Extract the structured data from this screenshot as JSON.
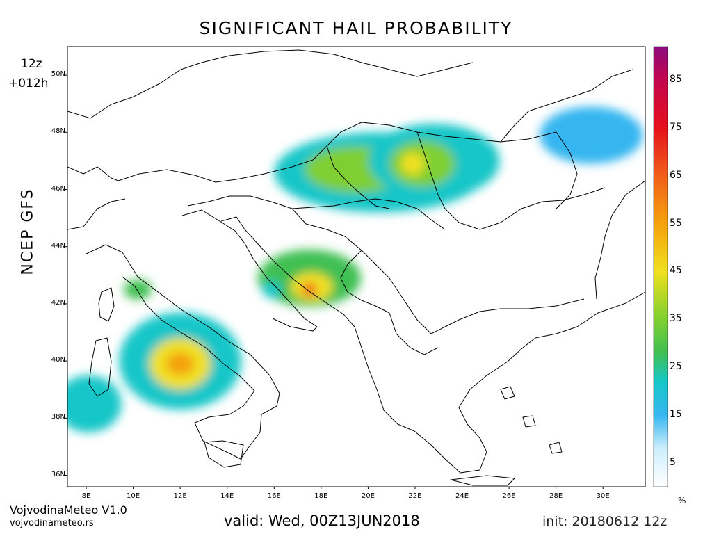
{
  "title": "SIGNIFICANT HAIL PROBABILITY",
  "run": {
    "cycle": "12z",
    "forecast_hour": "+012h"
  },
  "model": "NCEP GFS",
  "footer": {
    "brand": "VojvodinaMeteo V1.0",
    "url": "vojvodinameteo.rs",
    "valid": "valid: Wed, 00Z13JUN2018",
    "init": "init: 20180612 12z"
  },
  "map": {
    "lon_range": [
      7.2,
      31.8
    ],
    "lat_range": [
      35.6,
      51
    ],
    "lat_ticks": [
      {
        "v": 50,
        "label": "50N"
      },
      {
        "v": 48,
        "label": "48N"
      },
      {
        "v": 46,
        "label": "46N"
      },
      {
        "v": 44,
        "label": "44N"
      },
      {
        "v": 42,
        "label": "42N"
      },
      {
        "v": 40,
        "label": "40N"
      },
      {
        "v": 38,
        "label": "38N"
      },
      {
        "v": 36,
        "label": "36N"
      }
    ],
    "lon_ticks": [
      {
        "v": 8,
        "label": "8E"
      },
      {
        "v": 10,
        "label": "10E"
      },
      {
        "v": 12,
        "label": "12E"
      },
      {
        "v": 14,
        "label": "14E"
      },
      {
        "v": 16,
        "label": "16E"
      },
      {
        "v": 18,
        "label": "18E"
      },
      {
        "v": 20,
        "label": "20E"
      },
      {
        "v": 22,
        "label": "22E"
      },
      {
        "v": 24,
        "label": "24E"
      },
      {
        "v": 26,
        "label": "26E"
      },
      {
        "v": 28,
        "label": "28E"
      },
      {
        "v": 30,
        "label": "30E"
      }
    ],
    "probability_areas": [
      {
        "lon": 20.5,
        "lat": 46.6,
        "rx": 4.5,
        "ry": 1.4,
        "value": 20
      },
      {
        "lon": 19.5,
        "lat": 46.7,
        "rx": 2.2,
        "ry": 0.8,
        "value": 35
      },
      {
        "lon": 22.8,
        "lat": 47.0,
        "rx": 2.8,
        "ry": 1.3,
        "value": 25
      },
      {
        "lon": 22.3,
        "lat": 46.9,
        "rx": 1.4,
        "ry": 0.8,
        "value": 35
      },
      {
        "lon": 21.9,
        "lat": 46.9,
        "rx": 0.5,
        "ry": 0.4,
        "value": 50
      },
      {
        "lon": 29.5,
        "lat": 47.9,
        "rx": 2.2,
        "ry": 1.0,
        "value": 15
      },
      {
        "lon": 17.5,
        "lat": 42.9,
        "rx": 2.2,
        "ry": 1.0,
        "value": 28
      },
      {
        "lon": 17.6,
        "lat": 42.6,
        "rx": 0.9,
        "ry": 0.5,
        "value": 45
      },
      {
        "lon": 17.5,
        "lat": 42.5,
        "rx": 0.3,
        "ry": 0.25,
        "value": 70
      },
      {
        "lon": 12.0,
        "lat": 40.0,
        "rx": 2.6,
        "ry": 1.7,
        "value": 25
      },
      {
        "lon": 12.0,
        "lat": 39.9,
        "rx": 1.3,
        "ry": 0.9,
        "value": 45
      },
      {
        "lon": 12.0,
        "lat": 39.9,
        "rx": 0.6,
        "ry": 0.4,
        "value": 55
      },
      {
        "lon": 8.1,
        "lat": 38.5,
        "rx": 1.4,
        "ry": 1.0,
        "value": 25
      },
      {
        "lon": 10.2,
        "lat": 42.5,
        "rx": 0.6,
        "ry": 0.35,
        "value": 30
      },
      {
        "lon": 15.9,
        "lat": 42.5,
        "rx": 0.4,
        "ry": 0.3,
        "value": 20
      }
    ]
  },
  "colorbar": {
    "unit": "%",
    "ticks": [
      {
        "v": 5,
        "label": "5"
      },
      {
        "v": 15,
        "label": "15"
      },
      {
        "v": 25,
        "label": "25"
      },
      {
        "v": 35,
        "label": "35"
      },
      {
        "v": 45,
        "label": "45"
      },
      {
        "v": 55,
        "label": "55"
      },
      {
        "v": 65,
        "label": "65"
      },
      {
        "v": 75,
        "label": "75"
      },
      {
        "v": 85,
        "label": "85"
      }
    ],
    "stops": [
      {
        "v": 0,
        "color": "#ffffff"
      },
      {
        "v": 8,
        "color": "#cdeefc"
      },
      {
        "v": 15,
        "color": "#36b6f0"
      },
      {
        "v": 22,
        "color": "#17c6c8"
      },
      {
        "v": 28,
        "color": "#3fbf52"
      },
      {
        "v": 35,
        "color": "#7fcf30"
      },
      {
        "v": 45,
        "color": "#f0e020"
      },
      {
        "v": 55,
        "color": "#f5a10e"
      },
      {
        "v": 65,
        "color": "#f0601a"
      },
      {
        "v": 75,
        "color": "#e4121b"
      },
      {
        "v": 85,
        "color": "#c3064e"
      },
      {
        "v": 92,
        "color": "#8b0c7e"
      }
    ]
  }
}
